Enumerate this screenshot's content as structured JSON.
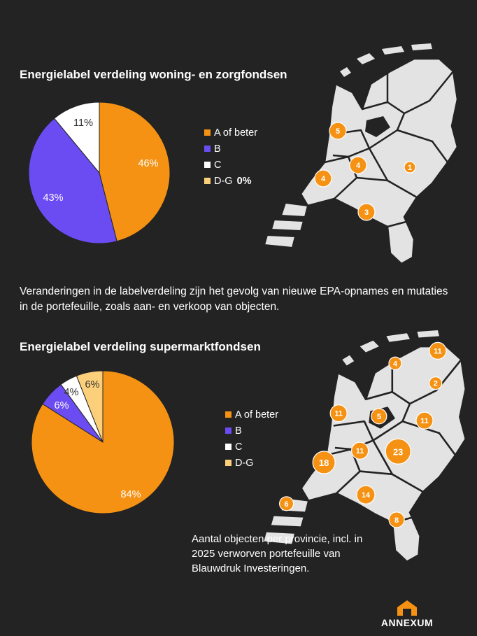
{
  "pie1": {
    "title": "Energielabel verdeling woning- en zorgfondsen"
  },
  "pie2": {
    "title": "Energielabel verdeling supermarktfondsen"
  },
  "note": "Veranderingen in de labelverdeling zijn het gevolg van nieuwe EPA-opnames en mutaties in de portefeuille, zoals aan- en verkoop van objecten.",
  "caption": "Aantal objecten per provincie, incl. in 2025 verworven portefeuille van Blauwdruk Investeringen.",
  "legend1": [
    {
      "label": "A of beter",
      "color": "#f59214"
    },
    {
      "label": "B",
      "color": "#6a4cf2"
    },
    {
      "label": "C",
      "color": "#ffffff"
    },
    {
      "label": "D-G",
      "color": "#fcd07a",
      "extra": "0%"
    }
  ],
  "legend2": [
    {
      "label": "A of beter",
      "color": "#f59214"
    },
    {
      "label": "B",
      "color": "#6a4cf2"
    },
    {
      "label": "C",
      "color": "#ffffff"
    },
    {
      "label": "D-G",
      "color": "#fcd07a"
    }
  ],
  "chart_data": [
    {
      "type": "pie",
      "title": "Energielabel verdeling woning- en zorgfondsen",
      "categories": [
        "A of beter",
        "B",
        "C",
        "D-G"
      ],
      "values": [
        46,
        43,
        11,
        0
      ],
      "labels": [
        "46%",
        "43%",
        "11%",
        "0%"
      ]
    },
    {
      "type": "pie",
      "title": "Energielabel verdeling supermarktfondsen",
      "categories": [
        "A of beter",
        "B",
        "C",
        "D-G"
      ],
      "values": [
        84,
        6,
        4,
        6
      ],
      "labels": [
        "84%",
        "6%",
        "4%",
        "6%"
      ]
    }
  ],
  "map1": {
    "markers": [
      {
        "province": "Noord-Holland",
        "count": "5"
      },
      {
        "province": "Utrecht",
        "count": "4"
      },
      {
        "province": "Zuid-Holland",
        "count": "4"
      },
      {
        "province": "Gelderland",
        "count": "1"
      },
      {
        "province": "Noord-Brabant",
        "count": "3"
      }
    ]
  },
  "map2": {
    "markers": [
      {
        "province": "Groningen",
        "count": "11"
      },
      {
        "province": "Friesland",
        "count": "4"
      },
      {
        "province": "Drenthe",
        "count": "2"
      },
      {
        "province": "Noord-Holland",
        "count": "11"
      },
      {
        "province": "Flevoland",
        "count": "5"
      },
      {
        "province": "Overijssel",
        "count": "11"
      },
      {
        "province": "Utrecht",
        "count": "11"
      },
      {
        "province": "Gelderland",
        "count": "23"
      },
      {
        "province": "Zuid-Holland",
        "count": "18"
      },
      {
        "province": "Zeeland",
        "count": "6"
      },
      {
        "province": "Noord-Brabant",
        "count": "14"
      },
      {
        "province": "Limburg",
        "count": "8"
      }
    ]
  },
  "brand": {
    "name": "ANNEXUM",
    "accent": "#f59214"
  }
}
